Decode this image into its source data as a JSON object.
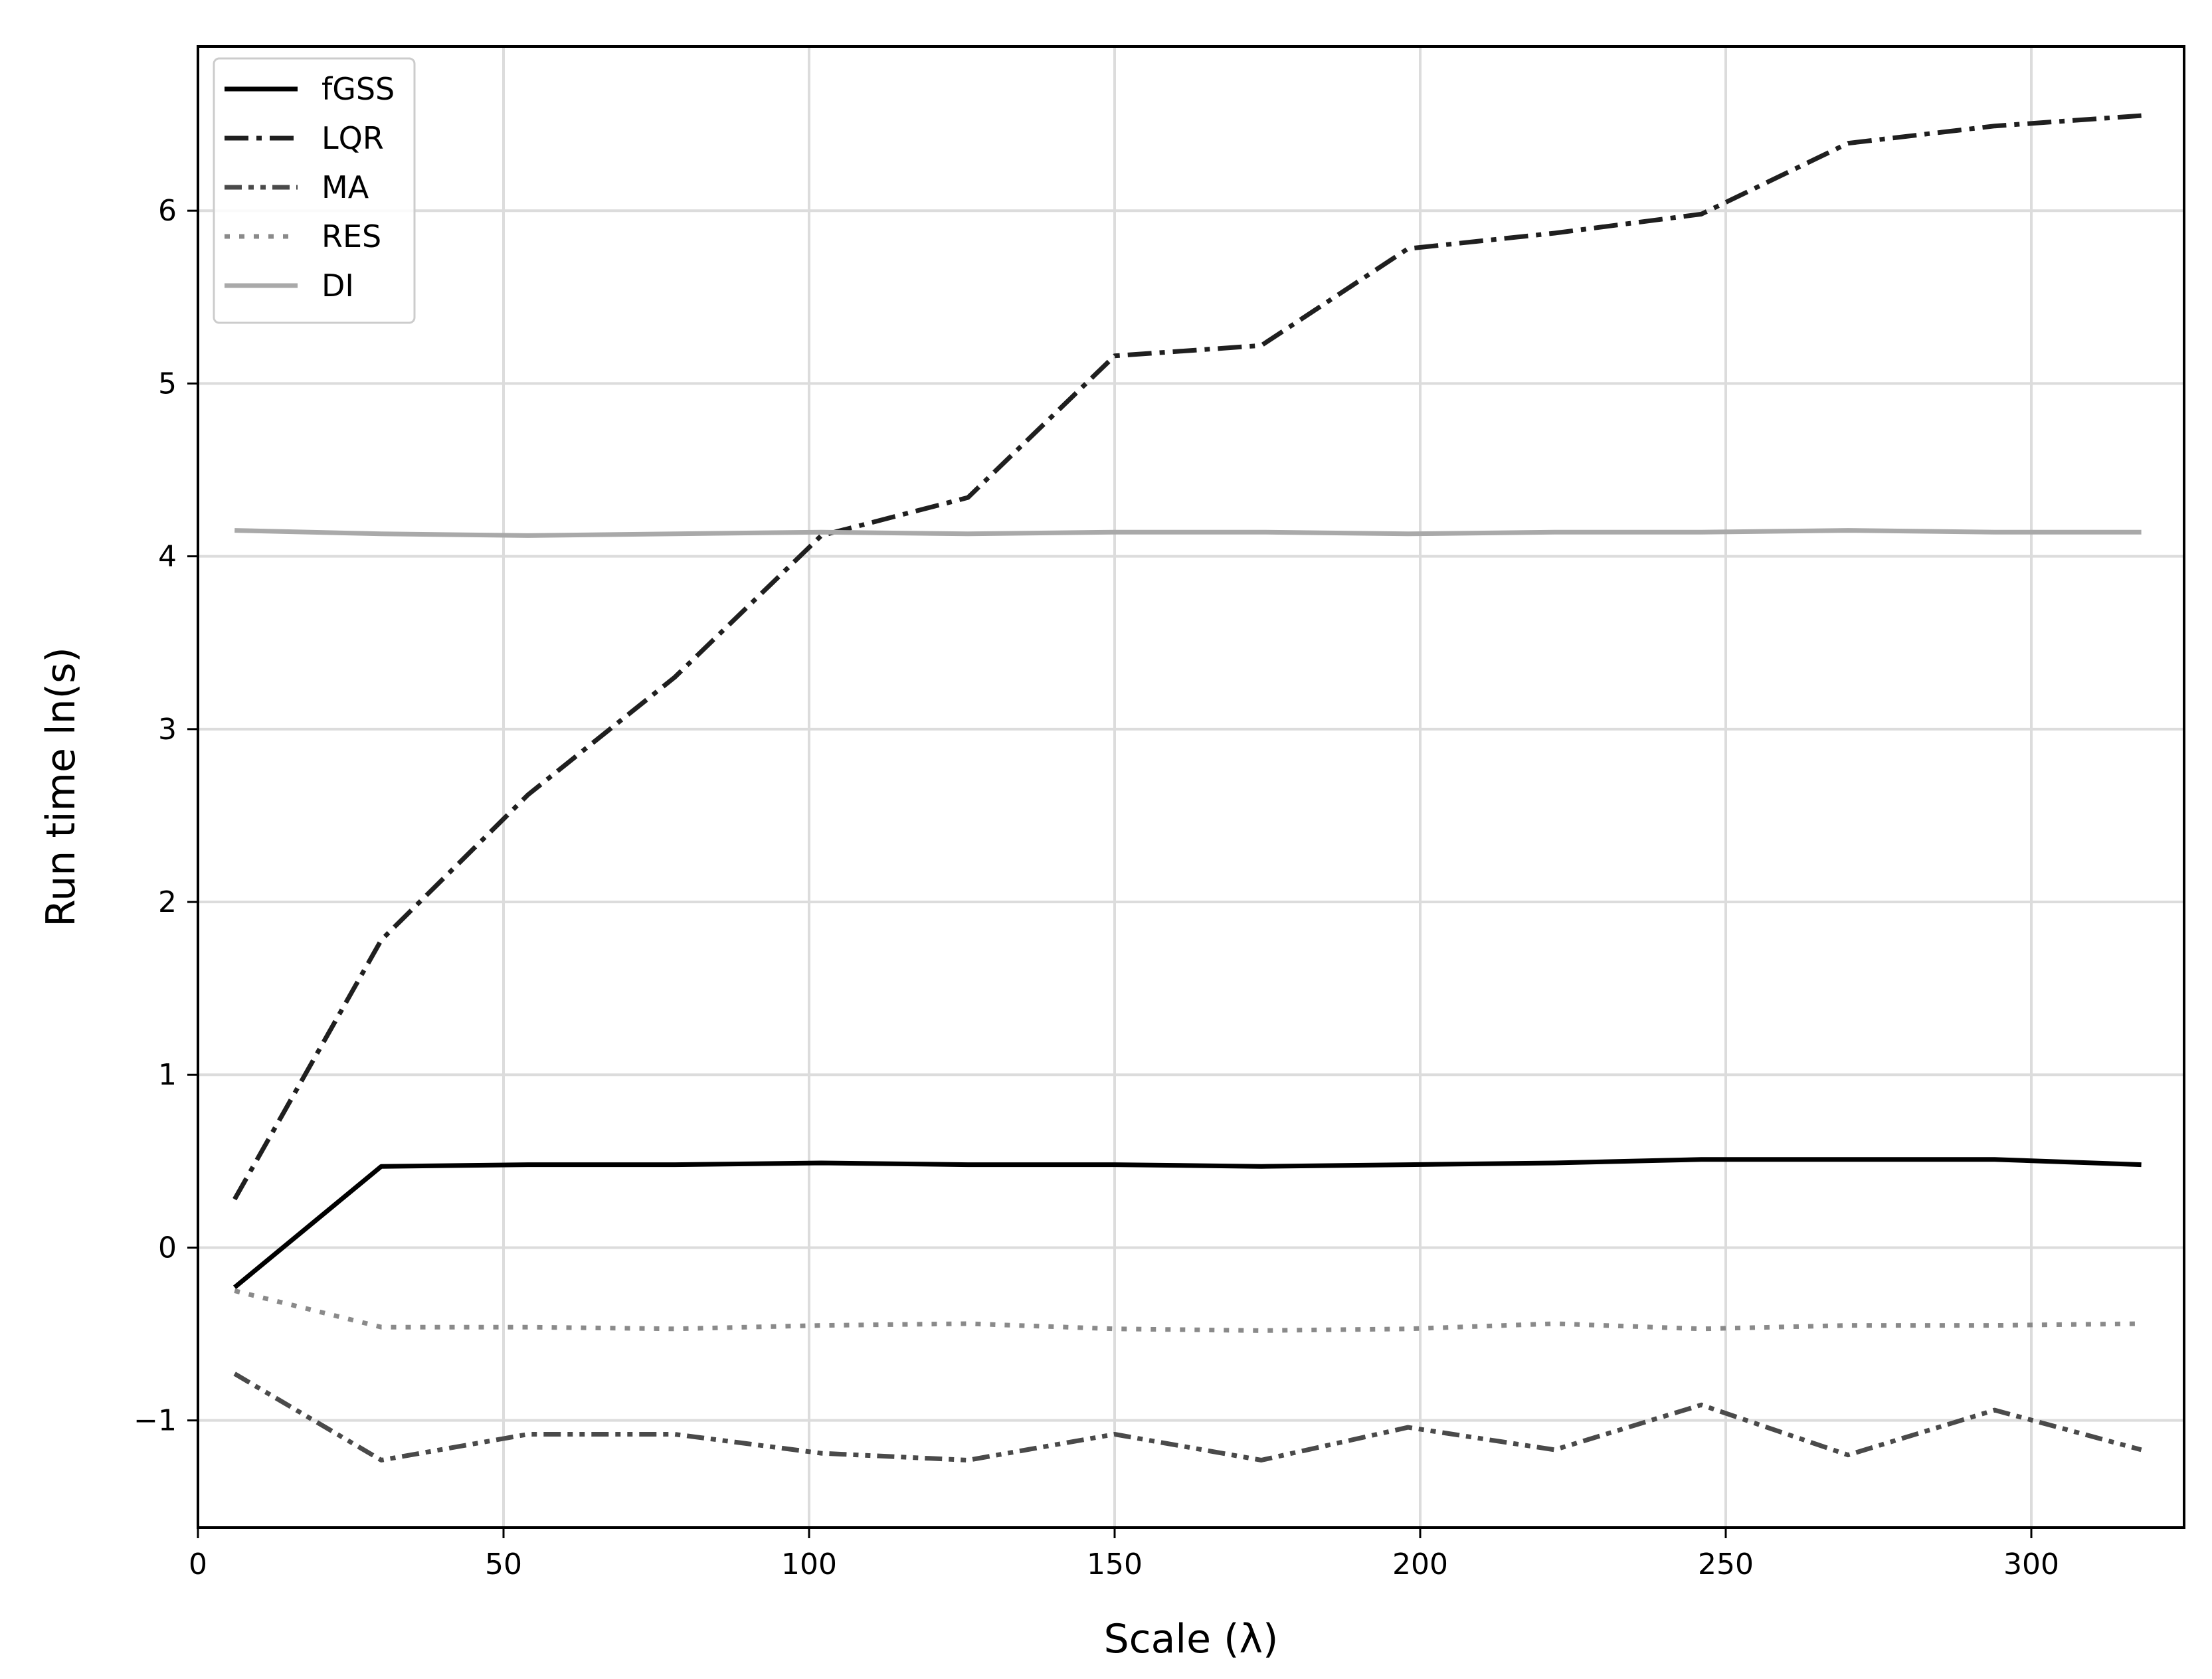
{
  "chart_data": {
    "type": "line",
    "title": "",
    "xlabel": "Scale (λ)",
    "ylabel": "Run time ln(s)",
    "xlim": [
      0,
      325
    ],
    "ylim": [
      -1.62,
      6.95
    ],
    "xticks": [
      0,
      50,
      100,
      150,
      200,
      250,
      300
    ],
    "yticks": [
      -1,
      0,
      1,
      2,
      3,
      4,
      5,
      6
    ],
    "xtick_labels": [
      "0",
      "50",
      "100",
      "150",
      "200",
      "250",
      "300"
    ],
    "ytick_labels": [
      "−1",
      "0",
      "1",
      "2",
      "3",
      "4",
      "5",
      "6"
    ],
    "grid": true,
    "legend_position": "upper-left",
    "x": [
      6,
      30,
      54,
      78,
      102,
      126,
      150,
      174,
      198,
      222,
      246,
      270,
      294,
      318
    ],
    "series": [
      {
        "name": "fGSS",
        "color": "#000000",
        "dash": "solid",
        "values": [
          -0.23,
          0.47,
          0.48,
          0.48,
          0.49,
          0.48,
          0.48,
          0.47,
          0.48,
          0.49,
          0.51,
          0.51,
          0.51,
          0.48
        ]
      },
      {
        "name": "LQR",
        "color": "#1f1f1f",
        "dash": "dashdot",
        "values": [
          0.28,
          1.78,
          2.62,
          3.3,
          4.12,
          4.34,
          5.16,
          5.22,
          5.78,
          5.87,
          5.98,
          6.39,
          6.49,
          6.55
        ]
      },
      {
        "name": "MA",
        "color": "#4a4a4a",
        "dash": "dashdotdot",
        "values": [
          -0.73,
          -1.23,
          -1.08,
          -1.08,
          -1.19,
          -1.23,
          -1.08,
          -1.23,
          -1.04,
          -1.17,
          -0.91,
          -1.2,
          -0.94,
          -1.17
        ]
      },
      {
        "name": "RES",
        "color": "#8a8a8a",
        "dash": "dotted",
        "values": [
          -0.25,
          -0.46,
          -0.46,
          -0.47,
          -0.45,
          -0.44,
          -0.47,
          -0.48,
          -0.47,
          -0.44,
          -0.47,
          -0.45,
          -0.45,
          -0.44
        ]
      },
      {
        "name": "DI",
        "color": "#a9a9a9",
        "dash": "solid",
        "values": [
          4.15,
          4.13,
          4.12,
          4.13,
          4.14,
          4.13,
          4.14,
          4.14,
          4.13,
          4.14,
          4.14,
          4.15,
          4.14,
          4.14
        ]
      }
    ]
  }
}
